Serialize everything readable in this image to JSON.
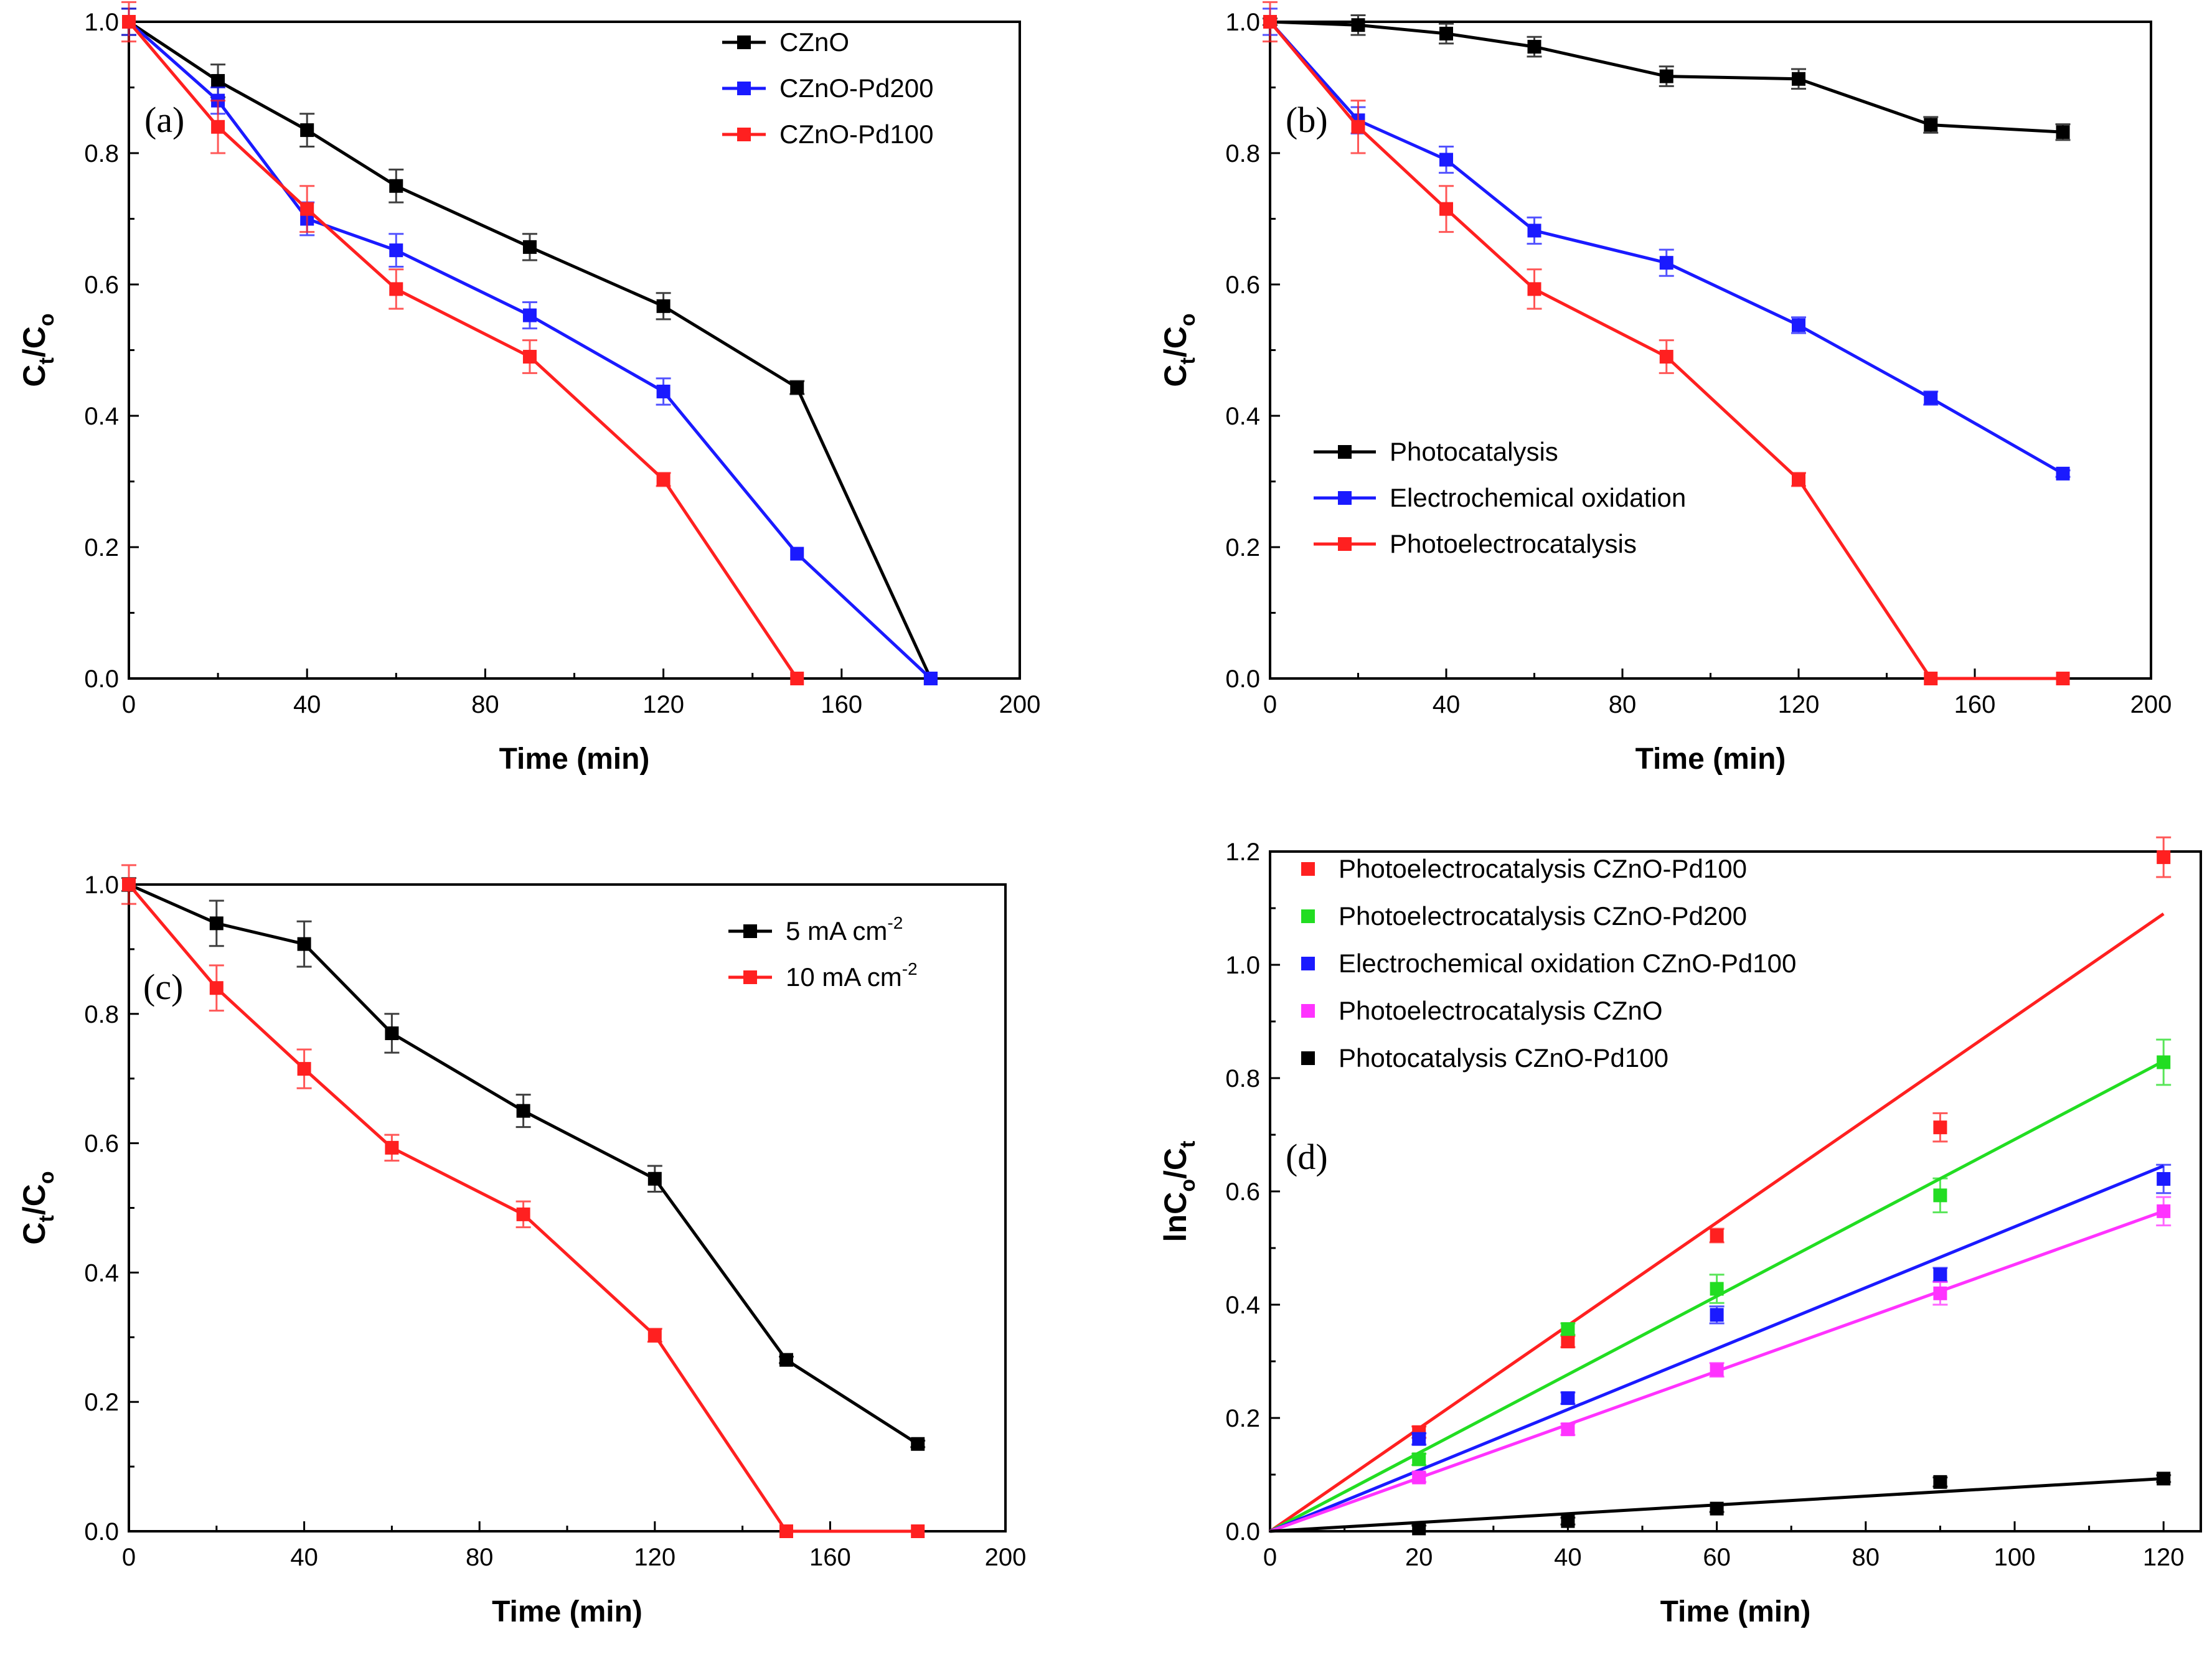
{
  "figure": {
    "description_domain": "multi-panel chart"
  },
  "chart_data": [
    {
      "id": "a",
      "type": "line",
      "panel_label": "(a)",
      "xlabel": "Time (min)",
      "ylabel": {
        "main": "C",
        "sub1": "t",
        "mid": "/C",
        "sub2": "o"
      },
      "xlim": [
        0,
        200
      ],
      "ylim": [
        0.0,
        1.0
      ],
      "xticks": [
        0,
        40,
        80,
        120,
        160,
        200
      ],
      "yticks": [
        0.0,
        0.2,
        0.4,
        0.6,
        0.8,
        1.0
      ],
      "xtick_labels": [
        "0",
        "40",
        "80",
        "120",
        "160",
        "200"
      ],
      "ytick_labels": [
        "0.0",
        "0.2",
        "0.4",
        "0.6",
        "0.8",
        "1.0"
      ],
      "legend_position": "top-right",
      "series": [
        {
          "name": "CZnO",
          "color": "#000000",
          "x": [
            0,
            20,
            40,
            60,
            90,
            120,
            150,
            180
          ],
          "y": [
            1.0,
            0.91,
            0.835,
            0.75,
            0.657,
            0.567,
            0.443,
            0.0
          ],
          "err": [
            0.02,
            0.025,
            0.025,
            0.025,
            0.02,
            0.02,
            0.01,
            0.0
          ]
        },
        {
          "name": "CZnO-Pd200",
          "color": "#1a1aff",
          "x": [
            0,
            20,
            40,
            60,
            90,
            120,
            150,
            180
          ],
          "y": [
            1.0,
            0.88,
            0.7,
            0.652,
            0.553,
            0.437,
            0.19,
            0.0
          ],
          "err": [
            0.02,
            0.02,
            0.025,
            0.025,
            0.02,
            0.02,
            0.0,
            0.0
          ]
        },
        {
          "name": "CZnO-Pd100",
          "color": "#ff2020",
          "x": [
            0,
            20,
            40,
            60,
            90,
            120,
            150
          ],
          "y": [
            1.0,
            0.84,
            0.715,
            0.593,
            0.49,
            0.303,
            0.0
          ],
          "err": [
            0.03,
            0.04,
            0.035,
            0.03,
            0.025,
            0.01,
            0.0
          ]
        }
      ]
    },
    {
      "id": "b",
      "type": "line",
      "panel_label": "(b)",
      "xlabel": "Time (min)",
      "ylabel": {
        "main": "C",
        "sub1": "t",
        "mid": "/C",
        "sub2": "o"
      },
      "xlim": [
        0,
        200
      ],
      "ylim": [
        0.0,
        1.0
      ],
      "xticks": [
        0,
        40,
        80,
        120,
        160,
        200
      ],
      "yticks": [
        0.0,
        0.2,
        0.4,
        0.6,
        0.8,
        1.0
      ],
      "xtick_labels": [
        "0",
        "40",
        "80",
        "120",
        "160",
        "200"
      ],
      "ytick_labels": [
        "0.0",
        "0.2",
        "0.4",
        "0.6",
        "0.8",
        "1.0"
      ],
      "legend_position": "middle-left",
      "series": [
        {
          "name": "Photocatalysis",
          "color": "#000000",
          "x": [
            0,
            20,
            40,
            60,
            90,
            120,
            150,
            180
          ],
          "y": [
            1.0,
            0.995,
            0.982,
            0.962,
            0.917,
            0.913,
            0.843,
            0.832
          ],
          "err": [
            0.005,
            0.015,
            0.015,
            0.015,
            0.015,
            0.015,
            0.012,
            0.012
          ]
        },
        {
          "name": "Electrochemical oxidation",
          "color": "#1a1aff",
          "x": [
            0,
            20,
            40,
            60,
            90,
            120,
            150,
            180
          ],
          "y": [
            1.0,
            0.85,
            0.79,
            0.682,
            0.633,
            0.538,
            0.427,
            0.312
          ],
          "err": [
            0.02,
            0.02,
            0.02,
            0.02,
            0.02,
            0.012,
            0.01,
            0.005
          ]
        },
        {
          "name": "Photoelectrocatalysis",
          "color": "#ff2020",
          "x": [
            0,
            20,
            40,
            60,
            90,
            120,
            150,
            180
          ],
          "y": [
            1.0,
            0.84,
            0.715,
            0.593,
            0.49,
            0.303,
            0.0,
            0.0
          ],
          "err": [
            0.03,
            0.04,
            0.035,
            0.03,
            0.025,
            0.01,
            0.0,
            0.0
          ]
        }
      ]
    },
    {
      "id": "c",
      "type": "line",
      "panel_label": "(c)",
      "xlabel": "Time (min)",
      "ylabel": {
        "main": "C",
        "sub1": "t",
        "mid": "/C",
        "sub2": "o"
      },
      "xlim": [
        0,
        200
      ],
      "ylim": [
        0.0,
        1.0
      ],
      "xticks": [
        0,
        40,
        80,
        120,
        160,
        200
      ],
      "yticks": [
        0.0,
        0.2,
        0.4,
        0.6,
        0.8,
        1.0
      ],
      "xtick_labels": [
        "0",
        "40",
        "80",
        "120",
        "160",
        "200"
      ],
      "ytick_labels": [
        "0.0",
        "0.2",
        "0.4",
        "0.6",
        "0.8",
        "1.0"
      ],
      "legend_position": "top-right",
      "series": [
        {
          "name": "5 mA cm",
          "name_sup": "-2",
          "color": "#000000",
          "x": [
            0,
            20,
            40,
            60,
            90,
            120,
            150,
            180
          ],
          "y": [
            1.0,
            0.94,
            0.908,
            0.77,
            0.65,
            0.545,
            0.265,
            0.135
          ],
          "err": [
            0.01,
            0.035,
            0.035,
            0.03,
            0.025,
            0.02,
            0.005,
            0.005
          ]
        },
        {
          "name": "10 mA cm",
          "name_sup": "-2",
          "color": "#ff2020",
          "x": [
            0,
            20,
            40,
            60,
            90,
            120,
            150,
            180
          ],
          "y": [
            1.0,
            0.84,
            0.715,
            0.593,
            0.49,
            0.303,
            0.0,
            0.0
          ],
          "err": [
            0.03,
            0.035,
            0.03,
            0.02,
            0.02,
            0.01,
            0.0,
            0.0
          ]
        }
      ]
    },
    {
      "id": "d",
      "type": "scatter",
      "panel_label": "(d)",
      "xlabel": "Time (min)",
      "ylabel": {
        "main": "lnC",
        "sub1": "o",
        "mid": "/C",
        "sub2": "t"
      },
      "xlim": [
        0,
        125
      ],
      "ylim": [
        0.0,
        1.2
      ],
      "xticks": [
        0,
        20,
        40,
        60,
        80,
        100,
        120
      ],
      "yticks": [
        0.0,
        0.2,
        0.4,
        0.6,
        0.8,
        1.0,
        1.2
      ],
      "xtick_labels": [
        "0",
        "20",
        "40",
        "60",
        "80",
        "100",
        "120"
      ],
      "ytick_labels": [
        "0.0",
        "0.2",
        "0.4",
        "0.6",
        "0.8",
        "1.0",
        "1.2"
      ],
      "legend_position": "top-left",
      "series": [
        {
          "name": "Photoelectrocatalysis CZnO-Pd100",
          "color": "#ff2020",
          "x": [
            20,
            40,
            60,
            90,
            120
          ],
          "y": [
            0.175,
            0.335,
            0.522,
            0.713,
            1.19
          ],
          "err": [
            0.01,
            0.01,
            0.012,
            0.025,
            0.035
          ],
          "fit": [
            0,
            0.0,
            120,
            1.09
          ]
        },
        {
          "name": "Photoelectrocatalysis CZnO-Pd200",
          "color": "#22dd22",
          "x": [
            20,
            40,
            60,
            90,
            120
          ],
          "y": [
            0.127,
            0.357,
            0.428,
            0.593,
            0.828
          ],
          "err": [
            0.01,
            0.01,
            0.025,
            0.03,
            0.04
          ],
          "fit": [
            0,
            0.0,
            120,
            0.83
          ]
        },
        {
          "name": "Electrochemical oxidation CZnO-Pd100",
          "color": "#1a1aff",
          "x": [
            20,
            40,
            60,
            90,
            120
          ],
          "y": [
            0.163,
            0.235,
            0.382,
            0.453,
            0.622
          ],
          "err": [
            0.01,
            0.01,
            0.015,
            0.012,
            0.025
          ],
          "fit": [
            0,
            0.0,
            120,
            0.645
          ]
        },
        {
          "name": "Photoelectrocatalysis CZnO",
          "color": "#ff33ff",
          "x": [
            20,
            40,
            60,
            90,
            120
          ],
          "y": [
            0.095,
            0.18,
            0.285,
            0.42,
            0.565
          ],
          "err": [
            0.008,
            0.01,
            0.012,
            0.02,
            0.025
          ],
          "fit": [
            0,
            0.0,
            120,
            0.565
          ]
        },
        {
          "name": "Photocatalysis CZnO-Pd100",
          "color": "#000000",
          "x": [
            20,
            40,
            60,
            90,
            120
          ],
          "y": [
            0.005,
            0.018,
            0.04,
            0.087,
            0.093
          ],
          "err": [
            0.005,
            0.006,
            0.006,
            0.008,
            0.006
          ],
          "fit": [
            0,
            0.0,
            120,
            0.093
          ]
        }
      ]
    }
  ]
}
